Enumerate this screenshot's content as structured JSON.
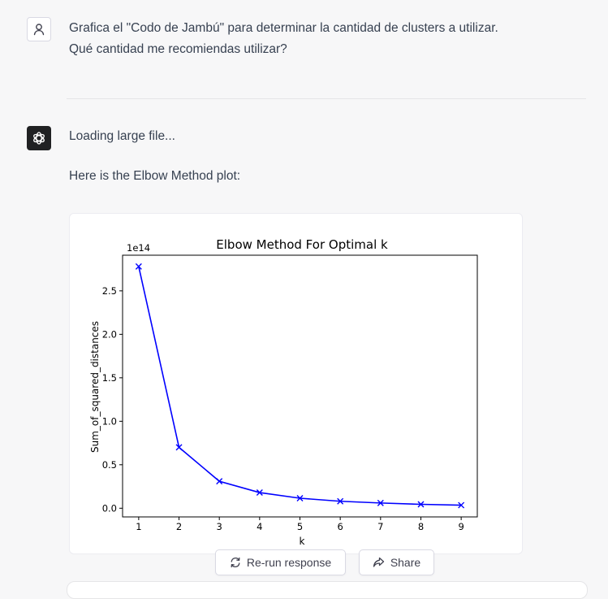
{
  "user_message": {
    "line1": "Grafica el \"Codo de Jambú\" para determinar la cantidad de clusters a utilizar.",
    "line2": "Qué cantidad me recomiendas utilizar?"
  },
  "assistant_message": {
    "line1": "Loading large file...",
    "line2": "Here is the Elbow Method plot:"
  },
  "actions": {
    "rerun_label": "Re-run response",
    "share_label": "Share"
  },
  "icons": {
    "user_avatar": "user-icon",
    "assistant_avatar": "openai-logo-icon",
    "rerun": "refresh-icon",
    "share": "share-arrow-icon"
  },
  "colors": {
    "line": "#0000ff",
    "assistant_avatar_bg": "#202123"
  },
  "chart_data": {
    "type": "line",
    "title": "Elbow Method For Optimal k",
    "xlabel": "k",
    "ylabel": "Sum_of_squared_distances",
    "y_offset_label": "1e14",
    "x": [
      1,
      2,
      3,
      4,
      5,
      6,
      7,
      8,
      9
    ],
    "values": [
      2.78,
      0.7,
      0.31,
      0.18,
      0.115,
      0.08,
      0.06,
      0.045,
      0.035
    ],
    "marker": "x",
    "xticks": [
      "1",
      "2",
      "3",
      "4",
      "5",
      "6",
      "7",
      "8",
      "9"
    ],
    "yticks": [
      "0.0",
      "0.5",
      "1.0",
      "1.5",
      "2.0",
      "2.5"
    ],
    "ytick_values": [
      0,
      0.5,
      1.0,
      1.5,
      2.0,
      2.5
    ],
    "xlim": [
      0.6,
      9.4
    ],
    "ylim": [
      -0.1,
      2.91
    ],
    "grid": false
  }
}
